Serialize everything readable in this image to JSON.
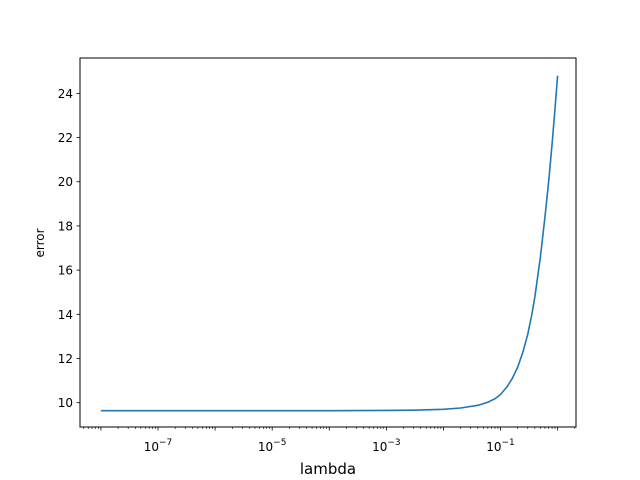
{
  "chart_data": {
    "type": "line",
    "title": "",
    "xlabel": "lambda",
    "ylabel": "error",
    "xscale": "log",
    "xlim": [
      4.3e-09,
      2.1
    ],
    "ylim": [
      8.9,
      25.6
    ],
    "grid": false,
    "legend": "none",
    "x_ticks": [
      {
        "value": 1e-07,
        "base": "10",
        "exp": "−7"
      },
      {
        "value": 1e-05,
        "base": "10",
        "exp": "−5"
      },
      {
        "value": 0.001,
        "base": "10",
        "exp": "−3"
      },
      {
        "value": 0.1,
        "base": "10",
        "exp": "−1"
      }
    ],
    "y_ticks": [
      10,
      12,
      14,
      16,
      18,
      20,
      22,
      24
    ],
    "series": [
      {
        "color": "#1f77b4",
        "x": [
          1e-08,
          1e-06,
          0.0001,
          0.001,
          0.003,
          0.01,
          0.02,
          0.04,
          0.06,
          0.08,
          0.1,
          0.13,
          0.16,
          0.2,
          0.25,
          0.3,
          0.35,
          0.4,
          0.5,
          0.6,
          0.7,
          0.8,
          0.9,
          1.0
        ],
        "y": [
          9.64,
          9.64,
          9.64,
          9.65,
          9.66,
          9.7,
          9.76,
          9.88,
          10.02,
          10.18,
          10.37,
          10.72,
          11.09,
          11.61,
          12.34,
          13.1,
          13.93,
          14.8,
          16.6,
          18.4,
          20.05,
          21.7,
          23.3,
          24.8
        ]
      }
    ]
  }
}
